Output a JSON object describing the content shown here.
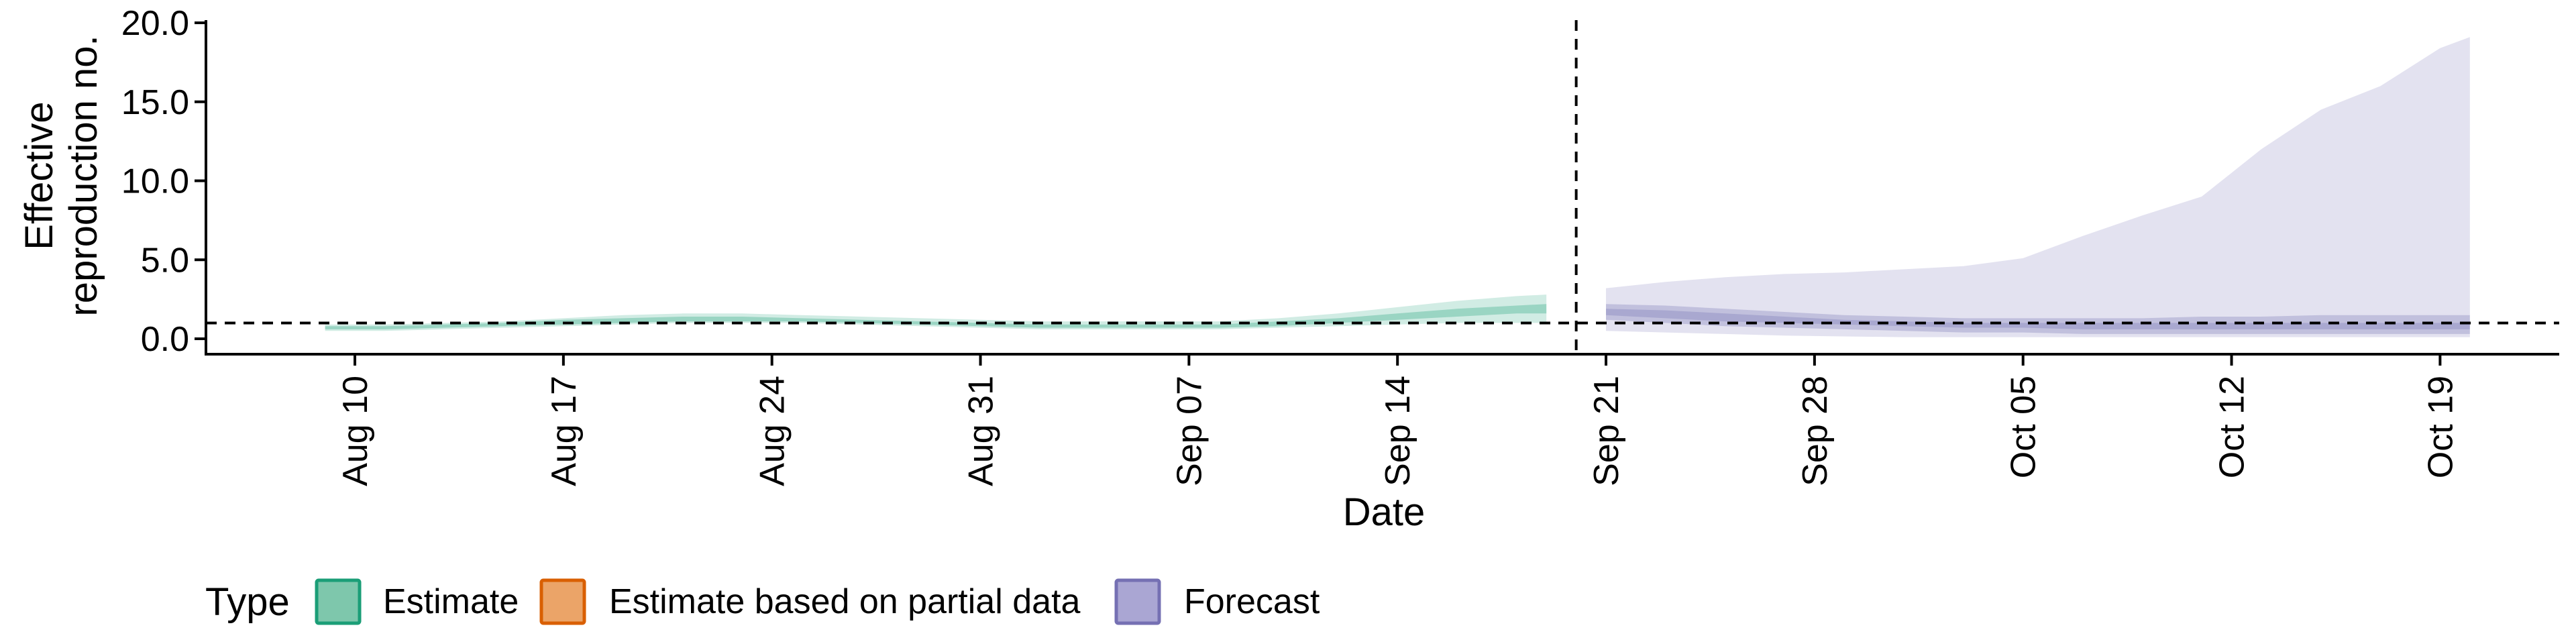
{
  "chart_data": {
    "type": "area",
    "xlabel": "Date",
    "ylabel_lines": [
      "Effective",
      "reproduction no."
    ],
    "ylim": [
      0,
      20
    ],
    "yticks": [
      {
        "value": 0,
        "label": "0.0"
      },
      {
        "value": 5,
        "label": "5.0"
      },
      {
        "value": 10,
        "label": "10.0"
      },
      {
        "value": 15,
        "label": "15.0"
      },
      {
        "value": 20,
        "label": "20.0"
      }
    ],
    "xlim": [
      "2020-08-05",
      "2020-10-23"
    ],
    "xticks": [
      {
        "date": "2020-08-10",
        "label": "Aug 10"
      },
      {
        "date": "2020-08-17",
        "label": "Aug 17"
      },
      {
        "date": "2020-08-24",
        "label": "Aug 24"
      },
      {
        "date": "2020-08-31",
        "label": "Aug 31"
      },
      {
        "date": "2020-09-07",
        "label": "Sep 07"
      },
      {
        "date": "2020-09-14",
        "label": "Sep 14"
      },
      {
        "date": "2020-09-21",
        "label": "Sep 21"
      },
      {
        "date": "2020-09-28",
        "label": "Sep 28"
      },
      {
        "date": "2020-10-05",
        "label": "Oct 05"
      },
      {
        "date": "2020-10-12",
        "label": "Oct 12"
      },
      {
        "date": "2020-10-19",
        "label": "Oct 19"
      }
    ],
    "reference_lines": {
      "horizontal_y": 1.0,
      "vertical_date": "2020-09-20"
    },
    "grid": false,
    "legend": {
      "title": "Type",
      "position": "bottom",
      "items": [
        {
          "label": "Estimate",
          "fill": "#7ec7ac",
          "stroke": "#1b9e77"
        },
        {
          "label": "Estimate based on partial data",
          "fill": "#eba468",
          "stroke": "#d95f02"
        },
        {
          "label": "Forecast",
          "fill": "#aaa6d3",
          "stroke": "#7570b3"
        }
      ]
    },
    "series": [
      {
        "name": "Estimate",
        "color": "#1b9e77",
        "x": [
          "2020-08-09",
          "2020-08-11",
          "2020-08-13",
          "2020-08-15",
          "2020-08-17",
          "2020-08-19",
          "2020-08-21",
          "2020-08-23",
          "2020-08-25",
          "2020-08-27",
          "2020-08-29",
          "2020-08-31",
          "2020-09-02",
          "2020-09-04",
          "2020-09-06",
          "2020-09-08",
          "2020-09-10",
          "2020-09-12",
          "2020-09-14",
          "2020-09-16",
          "2020-09-18",
          "2020-09-19"
        ],
        "outer_lower": [
          0.5,
          0.5,
          0.6,
          0.7,
          0.8,
          0.9,
          1.0,
          1.0,
          1.0,
          0.9,
          0.8,
          0.7,
          0.6,
          0.6,
          0.6,
          0.6,
          0.7,
          0.8,
          0.9,
          1.0,
          1.0,
          1.0
        ],
        "outer_upper": [
          0.9,
          0.9,
          1.0,
          1.1,
          1.3,
          1.5,
          1.6,
          1.6,
          1.5,
          1.4,
          1.3,
          1.2,
          1.1,
          1.1,
          1.1,
          1.1,
          1.3,
          1.6,
          2.0,
          2.4,
          2.7,
          2.8
        ],
        "inner_lower": [
          0.6,
          0.6,
          0.7,
          0.8,
          0.9,
          1.0,
          1.1,
          1.1,
          1.1,
          1.0,
          0.9,
          0.8,
          0.7,
          0.7,
          0.7,
          0.7,
          0.8,
          1.0,
          1.2,
          1.4,
          1.6,
          1.6
        ],
        "inner_upper": [
          0.8,
          0.8,
          0.9,
          1.0,
          1.2,
          1.3,
          1.4,
          1.4,
          1.3,
          1.2,
          1.1,
          1.0,
          0.9,
          0.9,
          0.9,
          0.9,
          1.1,
          1.3,
          1.6,
          1.9,
          2.1,
          2.2
        ]
      },
      {
        "name": "Forecast",
        "color": "#7570b3",
        "x": [
          "2020-09-21",
          "2020-09-23",
          "2020-09-25",
          "2020-09-27",
          "2020-09-29",
          "2020-10-01",
          "2020-10-03",
          "2020-10-05",
          "2020-10-07",
          "2020-10-09",
          "2020-10-11",
          "2020-10-12",
          "2020-10-13",
          "2020-10-15",
          "2020-10-17",
          "2020-10-19",
          "2020-10-20"
        ],
        "outer_lower": [
          0.5,
          0.4,
          0.3,
          0.2,
          0.15,
          0.1,
          0.1,
          0.1,
          0.1,
          0.1,
          0.1,
          0.1,
          0.1,
          0.1,
          0.1,
          0.1,
          0.1
        ],
        "outer_upper": [
          3.2,
          3.6,
          3.9,
          4.1,
          4.2,
          4.4,
          4.6,
          5.1,
          6.5,
          7.8,
          9.0,
          10.5,
          12.0,
          14.5,
          16.0,
          18.4,
          19.1
        ],
        "inner_lower": [
          1.2,
          1.0,
          0.8,
          0.7,
          0.6,
          0.5,
          0.4,
          0.4,
          0.3,
          0.3,
          0.3,
          0.3,
          0.3,
          0.3,
          0.3,
          0.3,
          0.3
        ],
        "inner_upper": [
          2.2,
          2.1,
          1.9,
          1.7,
          1.5,
          1.4,
          1.3,
          1.3,
          1.3,
          1.3,
          1.4,
          1.4,
          1.4,
          1.5,
          1.5,
          1.5,
          1.5
        ],
        "core_lower": [
          1.5,
          1.3,
          1.1,
          1.0,
          0.9,
          0.8,
          0.7,
          0.7,
          0.6,
          0.6,
          0.6,
          0.6,
          0.6,
          0.6,
          0.6,
          0.6,
          0.6
        ],
        "core_upper": [
          1.9,
          1.8,
          1.6,
          1.4,
          1.2,
          1.1,
          1.0,
          1.0,
          1.0,
          1.0,
          1.0,
          1.0,
          1.0,
          1.0,
          1.0,
          1.0,
          1.0
        ]
      }
    ]
  }
}
